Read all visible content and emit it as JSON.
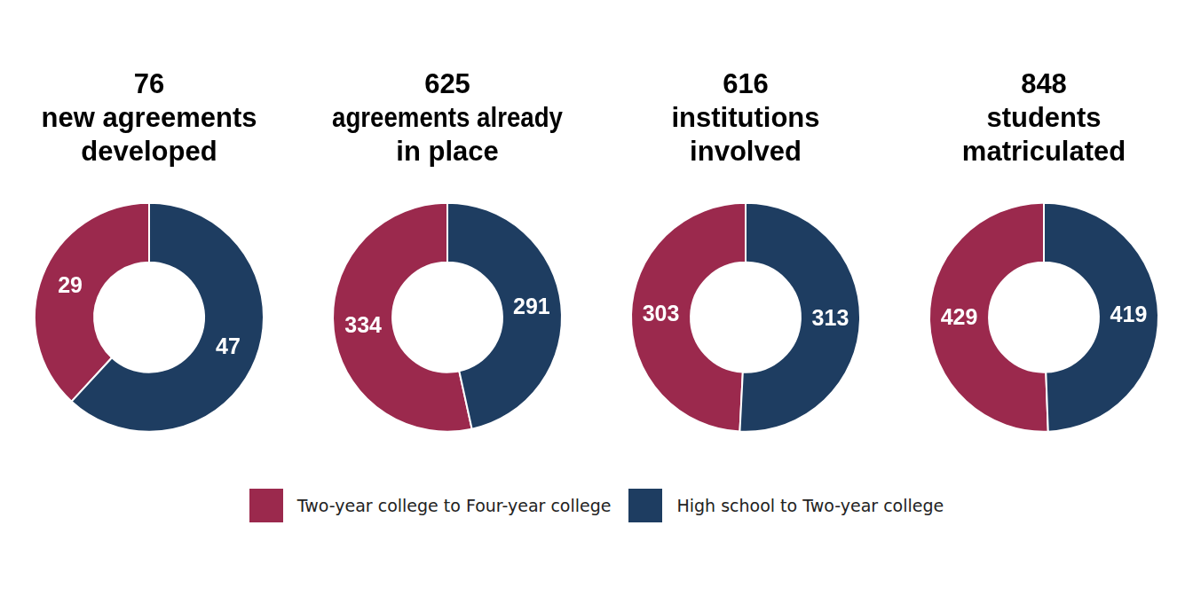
{
  "chart_data": [
    {
      "type": "doughnut",
      "title": [
        "76",
        "new agreements",
        "developed"
      ],
      "categories": [
        "Two-year college to Four-year college",
        "High school to Two-year college"
      ],
      "values": [
        29,
        47
      ],
      "colors": [
        "#9b294d",
        "#1e3d61"
      ],
      "data_labels": true,
      "legend": "bottom"
    },
    {
      "type": "doughnut",
      "title": [
        "625",
        "agreements already",
        "in place"
      ],
      "categories": [
        "Two-year college to Four-year college",
        "High school to Two-year college"
      ],
      "values": [
        334,
        291
      ],
      "colors": [
        "#9b294d",
        "#1e3d61"
      ],
      "data_labels": true,
      "legend": "bottom"
    },
    {
      "type": "doughnut",
      "title": [
        "616",
        "institutions",
        "involved"
      ],
      "categories": [
        "Two-year college to Four-year college",
        "High school to Two-year college"
      ],
      "values": [
        303,
        313
      ],
      "colors": [
        "#9b294d",
        "#1e3d61"
      ],
      "data_labels": true,
      "legend": "bottom"
    },
    {
      "type": "doughnut",
      "title": [
        "848",
        "students",
        "matriculated"
      ],
      "categories": [
        "Two-year college to Four-year college",
        "High school to Two-year college"
      ],
      "values": [
        429,
        419
      ],
      "colors": [
        "#9b294d",
        "#1e3d61"
      ],
      "data_labels": true,
      "legend": "bottom"
    }
  ]
}
